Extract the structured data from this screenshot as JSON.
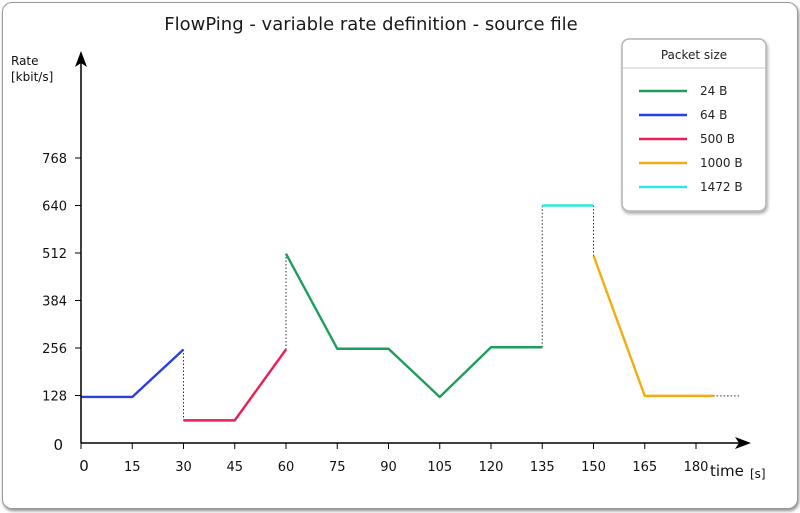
{
  "chart_data": {
    "type": "line",
    "title": "FlowPing - variable rate definition - source file",
    "ylabel": "Rate",
    "yunit": "[kbit/s]",
    "xlabel": "time",
    "xunit": "[s]",
    "xlim": [
      0,
      195
    ],
    "ylim": [
      0,
      880
    ],
    "x_ticks": [
      0,
      15,
      30,
      45,
      60,
      75,
      90,
      105,
      120,
      135,
      150,
      165,
      180
    ],
    "y_ticks": [
      0,
      128,
      256,
      384,
      512,
      640,
      768
    ],
    "legend": {
      "title": "Packet size",
      "placement": "top-right"
    },
    "series": [
      {
        "name": "24 B",
        "color": "#1e9e5c",
        "points": [
          [
            60,
            510
          ],
          [
            75,
            254
          ],
          [
            90,
            254
          ],
          [
            105,
            124
          ],
          [
            120,
            258
          ],
          [
            135,
            258
          ]
        ]
      },
      {
        "name": "64 B",
        "color": "#2a3fe0",
        "points": [
          [
            0,
            124
          ],
          [
            15,
            124
          ],
          [
            30,
            252
          ]
        ]
      },
      {
        "name": "500 B",
        "color": "#ea1f55",
        "points": [
          [
            30,
            61
          ],
          [
            45,
            61
          ],
          [
            60,
            252
          ]
        ]
      },
      {
        "name": "1000 B",
        "color": "#f2ad12",
        "points": [
          [
            150,
            505
          ],
          [
            165,
            127
          ],
          [
            185,
            127
          ]
        ]
      },
      {
        "name": "1472 B",
        "color": "#30e8e0",
        "points": [
          [
            135,
            640
          ],
          [
            150,
            640
          ]
        ]
      }
    ],
    "connectors": [
      [
        [
          30,
          252
        ],
        [
          30,
          61
        ]
      ],
      [
        [
          60,
          252
        ],
        [
          60,
          510
        ]
      ],
      [
        [
          135,
          258
        ],
        [
          135,
          640
        ]
      ],
      [
        [
          150,
          640
        ],
        [
          150,
          505
        ]
      ],
      [
        [
          185,
          127
        ],
        [
          193,
          127
        ]
      ]
    ]
  }
}
